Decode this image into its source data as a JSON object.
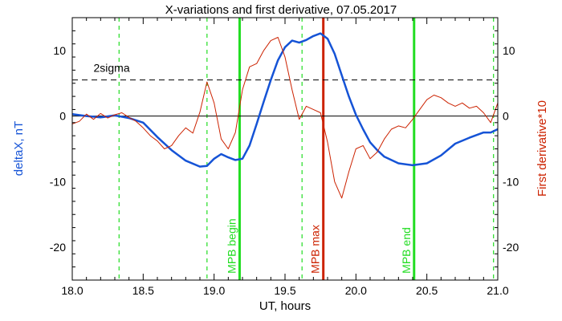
{
  "chart_data": {
    "type": "line",
    "title": "X-variations and first derivative, 07.05.2017",
    "xlabel": "UT, hours",
    "ylabel_left": "deltaX, nT",
    "ylabel_right": "First derivative*10",
    "xlim": [
      18.0,
      21.0
    ],
    "ylim": [
      -25,
      15
    ],
    "x_ticks": [
      "18.0",
      "18.5",
      "19.0",
      "19.5",
      "20.0",
      "20.5",
      "21.0"
    ],
    "y_ticks": [
      "10",
      "0",
      "-10",
      "-20"
    ],
    "grid": false,
    "colors": {
      "deltaX": "#1553d6",
      "derivative": "#cc2200",
      "mpb_lines": "#22dd22",
      "max_line": "#cc2200",
      "axis": "#000000"
    },
    "sigma_level": 5.5,
    "sigma_label": "2sigma",
    "zero_level": 0,
    "dashed_verticals": [
      18.33,
      18.95,
      19.62,
      20.97
    ],
    "markers": [
      {
        "x": 19.18,
        "label": "MPB begin",
        "color": "#22dd22"
      },
      {
        "x": 19.77,
        "label": "MPB max",
        "color": "#cc2200"
      },
      {
        "x": 20.41,
        "label": "MPB end",
        "color": "#22dd22"
      }
    ],
    "series": [
      {
        "key": "deltaX",
        "x": [
          18.0,
          18.1,
          18.2,
          18.3,
          18.4,
          18.5,
          18.6,
          18.7,
          18.8,
          18.9,
          18.95,
          19.0,
          19.05,
          19.1,
          19.15,
          19.2,
          19.25,
          19.3,
          19.35,
          19.4,
          19.45,
          19.5,
          19.55,
          19.6,
          19.65,
          19.7,
          19.75,
          19.8,
          19.85,
          19.9,
          19.95,
          20.0,
          20.05,
          20.1,
          20.15,
          20.2,
          20.3,
          20.4,
          20.5,
          20.6,
          20.7,
          20.8,
          20.9,
          20.95,
          21.0
        ],
        "values": [
          0.3,
          0.0,
          -0.2,
          0.1,
          -0.3,
          -1.0,
          -3.2,
          -5.2,
          -6.8,
          -7.7,
          -7.6,
          -6.5,
          -5.8,
          -6.3,
          -6.7,
          -6.5,
          -4.5,
          -1.2,
          2.2,
          5.5,
          8.5,
          10.5,
          11.5,
          11.2,
          11.6,
          12.2,
          12.6,
          11.8,
          9.5,
          6.2,
          3.0,
          0.2,
          -2.0,
          -4.0,
          -5.2,
          -6.2,
          -7.2,
          -7.5,
          -7.2,
          -6.0,
          -4.2,
          -3.3,
          -2.5,
          -2.5,
          -2.0
        ]
      },
      {
        "key": "derivative",
        "x": [
          18.0,
          18.05,
          18.1,
          18.15,
          18.2,
          18.25,
          18.3,
          18.35,
          18.4,
          18.45,
          18.5,
          18.55,
          18.6,
          18.65,
          18.7,
          18.75,
          18.8,
          18.85,
          18.9,
          18.95,
          19.0,
          19.05,
          19.1,
          19.15,
          19.2,
          19.25,
          19.3,
          19.35,
          19.4,
          19.45,
          19.5,
          19.55,
          19.6,
          19.65,
          19.7,
          19.75,
          19.8,
          19.85,
          19.9,
          19.95,
          20.0,
          20.05,
          20.1,
          20.15,
          20.2,
          20.25,
          20.3,
          20.35,
          20.4,
          20.45,
          20.5,
          20.55,
          20.6,
          20.65,
          20.7,
          20.75,
          20.8,
          20.85,
          20.9,
          20.95,
          21.0
        ],
        "values": [
          -1.2,
          -0.8,
          0.3,
          -0.5,
          0.4,
          -0.3,
          0.2,
          0.5,
          -0.2,
          -0.8,
          -1.8,
          -3.0,
          -3.8,
          -5.0,
          -4.5,
          -3.0,
          -1.8,
          -2.6,
          0.6,
          5.2,
          2.0,
          -3.5,
          -5.0,
          -2.5,
          4.0,
          7.5,
          8.0,
          10.0,
          11.5,
          12.0,
          9.0,
          4.0,
          -0.5,
          1.5,
          1.0,
          0.5,
          -4.0,
          -10.0,
          -12.5,
          -8.5,
          -5.0,
          -4.5,
          -6.5,
          -5.5,
          -3.5,
          -2.0,
          -1.5,
          -1.8,
          -0.5,
          1.0,
          2.5,
          3.2,
          2.8,
          2.0,
          1.5,
          2.0,
          1.2,
          1.5,
          0.5,
          -1.0,
          2.0
        ]
      }
    ]
  }
}
